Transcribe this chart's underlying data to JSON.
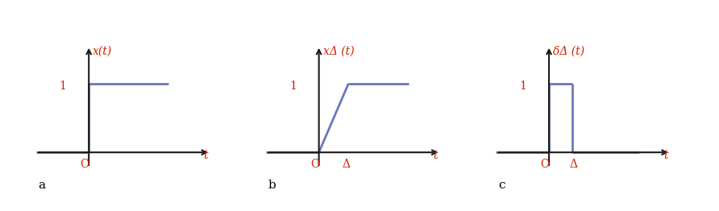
{
  "fig_width": 8.92,
  "fig_height": 2.62,
  "dpi": 100,
  "label_a": "a",
  "label_b": "b",
  "label_c": "c",
  "line_color": "#6878b8",
  "axis_color": "#1a1a1a",
  "text_color": "#cc2200",
  "plot_a": {
    "title": "x(t)",
    "xlabel": "t",
    "origin_label": "O",
    "y_label": "1"
  },
  "plot_b": {
    "title": "xΔ (t)",
    "xlabel": "t",
    "origin_label": "O",
    "delta_label": "Δ",
    "y_label": "1"
  },
  "plot_c": {
    "title": "δΔ (t)",
    "xlabel": "t",
    "origin_label": "O",
    "delta_label": "Δ",
    "y_label": "1"
  }
}
